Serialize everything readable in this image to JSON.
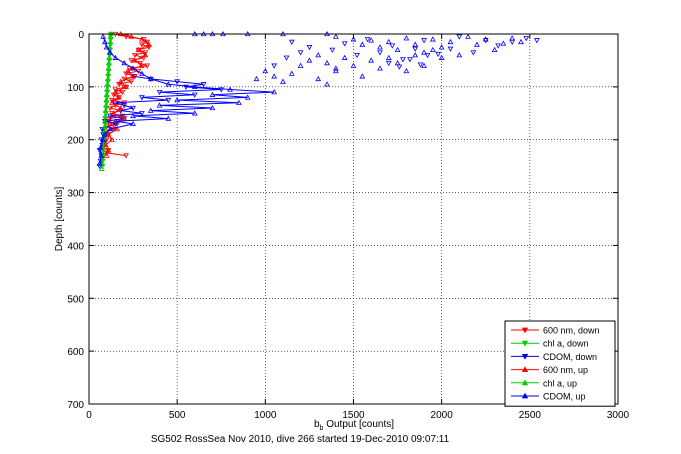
{
  "caption": "SG502 RossSea Nov 2010, dive 266 started 19-Dec-2010 09:07:11",
  "chart_data": {
    "type": "scatter",
    "title": "",
    "xlabel": "b_b Output [counts]",
    "xlabel_main": "b",
    "xlabel_sub": "b",
    "xlabel_rest": " Output [counts]",
    "ylabel": "Depth [counts]",
    "xlim": [
      0,
      3000
    ],
    "ylim": [
      0,
      700
    ],
    "y_reversed": true,
    "grid": true,
    "grid_style": "dotted",
    "legend_position": "bottom-right",
    "x_ticks": [
      0,
      500,
      1000,
      1500,
      2000,
      2500,
      3000
    ],
    "y_ticks": [
      0,
      100,
      200,
      300,
      400,
      500,
      600,
      700
    ],
    "series": [
      {
        "name": "600 nm, down",
        "color": "#ff0000",
        "marker": "triangle-down",
        "line": true,
        "points": [
          [
            150,
            0
          ],
          [
            210,
            5
          ],
          [
            310,
            10
          ],
          [
            330,
            15
          ],
          [
            300,
            20
          ],
          [
            340,
            25
          ],
          [
            280,
            30
          ],
          [
            320,
            35
          ],
          [
            260,
            40
          ],
          [
            310,
            45
          ],
          [
            240,
            50
          ],
          [
            290,
            55
          ],
          [
            330,
            60
          ],
          [
            230,
            65
          ],
          [
            280,
            70
          ],
          [
            210,
            75
          ],
          [
            260,
            80
          ],
          [
            200,
            85
          ],
          [
            240,
            90
          ],
          [
            170,
            95
          ],
          [
            210,
            100
          ],
          [
            150,
            105
          ],
          [
            190,
            110
          ],
          [
            140,
            115
          ],
          [
            170,
            120
          ],
          [
            130,
            125
          ],
          [
            200,
            130
          ],
          [
            150,
            135
          ],
          [
            120,
            140
          ],
          [
            180,
            145
          ],
          [
            130,
            150
          ],
          [
            190,
            155
          ],
          [
            120,
            160
          ],
          [
            110,
            165
          ],
          [
            160,
            170
          ],
          [
            100,
            175
          ],
          [
            140,
            180
          ],
          [
            95,
            185
          ],
          [
            110,
            190
          ],
          [
            90,
            195
          ],
          [
            100,
            200
          ],
          [
            90,
            205
          ],
          [
            85,
            210
          ],
          [
            80,
            215
          ],
          [
            110,
            220
          ],
          [
            100,
            225
          ],
          [
            210,
            230
          ]
        ]
      },
      {
        "name": "chl a, down",
        "color": "#00cc00",
        "marker": "triangle-down",
        "line": true,
        "points": [
          [
            125,
            0
          ],
          [
            124,
            10
          ],
          [
            122,
            20
          ],
          [
            120,
            30
          ],
          [
            118,
            40
          ],
          [
            116,
            50
          ],
          [
            114,
            60
          ],
          [
            112,
            70
          ],
          [
            110,
            80
          ],
          [
            108,
            90
          ],
          [
            106,
            100
          ],
          [
            104,
            110
          ],
          [
            102,
            120
          ],
          [
            100,
            130
          ],
          [
            98,
            140
          ],
          [
            96,
            150
          ],
          [
            94,
            160
          ],
          [
            92,
            170
          ],
          [
            90,
            180
          ],
          [
            88,
            190
          ],
          [
            86,
            200
          ],
          [
            84,
            210
          ],
          [
            82,
            220
          ],
          [
            80,
            230
          ],
          [
            78,
            240
          ],
          [
            76,
            250
          ]
        ]
      },
      {
        "name": "CDOM, down",
        "color": "#0000ff",
        "marker": "triangle-down",
        "line": true,
        "points": [
          [
            60,
            250
          ],
          [
            65,
            240
          ],
          [
            70,
            230
          ],
          [
            60,
            220
          ],
          [
            75,
            210
          ],
          [
            70,
            200
          ],
          [
            80,
            190
          ],
          [
            75,
            180
          ],
          [
            150,
            170
          ],
          [
            90,
            165
          ],
          [
            200,
            160
          ],
          [
            120,
            155
          ],
          [
            300,
            150
          ],
          [
            180,
            145
          ],
          [
            250,
            140
          ],
          [
            200,
            135
          ],
          [
            150,
            130
          ],
          [
            450,
            125
          ],
          [
            300,
            120
          ],
          [
            600,
            115
          ],
          [
            400,
            110
          ],
          [
            750,
            105
          ],
          [
            550,
            100
          ],
          [
            650,
            95
          ],
          [
            500,
            90
          ],
          [
            350,
            85
          ],
          [
            250,
            80
          ]
        ]
      },
      {
        "name": "600 nm, up",
        "color": "#ff0000",
        "marker": "triangle-up",
        "line": true,
        "points": [
          [
            100,
            230
          ],
          [
            110,
            220
          ],
          [
            95,
            210
          ],
          [
            130,
            200
          ],
          [
            110,
            190
          ],
          [
            160,
            180
          ],
          [
            120,
            170
          ],
          [
            200,
            160
          ],
          [
            140,
            150
          ],
          [
            180,
            140
          ],
          [
            130,
            130
          ],
          [
            170,
            120
          ],
          [
            150,
            110
          ],
          [
            210,
            100
          ],
          [
            180,
            90
          ],
          [
            250,
            80
          ],
          [
            220,
            70
          ],
          [
            300,
            60
          ],
          [
            260,
            50
          ],
          [
            320,
            40
          ],
          [
            280,
            30
          ],
          [
            340,
            20
          ],
          [
            300,
            10
          ],
          [
            240,
            5
          ],
          [
            180,
            0
          ]
        ]
      },
      {
        "name": "chl a, up",
        "color": "#00cc00",
        "marker": "triangle-up",
        "line": true,
        "points": [
          [
            72,
            255
          ],
          [
            74,
            245
          ],
          [
            76,
            235
          ],
          [
            78,
            225
          ],
          [
            80,
            215
          ],
          [
            82,
            205
          ],
          [
            84,
            195
          ],
          [
            86,
            185
          ],
          [
            88,
            175
          ],
          [
            90,
            165
          ],
          [
            92,
            155
          ],
          [
            94,
            145
          ],
          [
            96,
            135
          ],
          [
            98,
            125
          ],
          [
            100,
            115
          ],
          [
            102,
            105
          ],
          [
            104,
            95
          ],
          [
            106,
            85
          ],
          [
            108,
            75
          ],
          [
            110,
            65
          ],
          [
            112,
            55
          ],
          [
            114,
            45
          ],
          [
            116,
            35
          ],
          [
            118,
            25
          ],
          [
            120,
            15
          ],
          [
            122,
            5
          ],
          [
            124,
            0
          ]
        ]
      },
      {
        "name": "CDOM, up",
        "color": "#0000ff",
        "marker": "triangle-up",
        "line": true,
        "points": [
          [
            60,
            245
          ],
          [
            70,
            230
          ],
          [
            65,
            215
          ],
          [
            80,
            200
          ],
          [
            90,
            190
          ],
          [
            120,
            180
          ],
          [
            250,
            170
          ],
          [
            150,
            165
          ],
          [
            450,
            160
          ],
          [
            250,
            155
          ],
          [
            600,
            150
          ],
          [
            350,
            145
          ],
          [
            700,
            140
          ],
          [
            400,
            135
          ],
          [
            850,
            130
          ],
          [
            500,
            125
          ],
          [
            900,
            120
          ],
          [
            700,
            115
          ],
          [
            1050,
            110
          ],
          [
            800,
            105
          ],
          [
            600,
            100
          ],
          [
            450,
            95
          ],
          [
            350,
            85
          ],
          [
            300,
            75
          ],
          [
            250,
            65
          ],
          [
            200,
            55
          ],
          [
            150,
            45
          ],
          [
            120,
            35
          ],
          [
            100,
            25
          ],
          [
            90,
            15
          ],
          [
            80,
            5
          ]
        ]
      },
      {
        "name": "",
        "color": "#0000ff",
        "marker": "triangle-up",
        "line": false,
        "points": [
          [
            600,
            0
          ],
          [
            650,
            0
          ],
          [
            700,
            0
          ],
          [
            760,
            0
          ],
          [
            900,
            0
          ],
          [
            1100,
            0
          ],
          [
            1350,
            0
          ],
          [
            1400,
            5
          ],
          [
            1500,
            10
          ],
          [
            1550,
            20
          ],
          [
            1600,
            12
          ],
          [
            1650,
            25
          ],
          [
            1700,
            15
          ],
          [
            1750,
            30
          ],
          [
            1800,
            8
          ],
          [
            1850,
            20
          ],
          [
            1900,
            35
          ],
          [
            1950,
            10
          ],
          [
            2000,
            25
          ],
          [
            2050,
            15
          ],
          [
            2100,
            40
          ],
          [
            2150,
            5
          ],
          [
            2200,
            20
          ],
          [
            2250,
            10
          ],
          [
            2300,
            30
          ],
          [
            2350,
            18
          ],
          [
            2400,
            8
          ],
          [
            2450,
            15
          ],
          [
            1300,
            40
          ],
          [
            1350,
            55
          ],
          [
            1400,
            70
          ],
          [
            1450,
            45
          ],
          [
            1500,
            60
          ],
          [
            1550,
            80
          ],
          [
            1600,
            50
          ],
          [
            1650,
            65
          ],
          [
            1700,
            45
          ],
          [
            1750,
            55
          ],
          [
            1800,
            70
          ],
          [
            1850,
            40
          ],
          [
            1900,
            60
          ],
          [
            1950,
            30
          ],
          [
            2000,
            45
          ],
          [
            1200,
            60
          ],
          [
            1150,
            75
          ],
          [
            1250,
            50
          ],
          [
            1100,
            90
          ],
          [
            1050,
            80
          ],
          [
            1000,
            70
          ],
          [
            950,
            85
          ],
          [
            1300,
            85
          ],
          [
            1350,
            95
          ],
          [
            1400,
            65
          ]
        ]
      },
      {
        "name": "",
        "color": "#0000ff",
        "marker": "triangle-down",
        "line": false,
        "points": [
          [
            1150,
            15
          ],
          [
            1250,
            25
          ],
          [
            1380,
            30
          ],
          [
            1450,
            18
          ],
          [
            1520,
            40
          ],
          [
            1580,
            10
          ],
          [
            1650,
            35
          ],
          [
            1720,
            22
          ],
          [
            1780,
            48
          ],
          [
            1850,
            28
          ],
          [
            1900,
            12
          ],
          [
            1980,
            38
          ],
          [
            2050,
            28
          ],
          [
            2100,
            5
          ],
          [
            2180,
            35
          ],
          [
            2250,
            12
          ],
          [
            2320,
            22
          ],
          [
            2400,
            15
          ],
          [
            2480,
            8
          ],
          [
            2540,
            12
          ],
          [
            1700,
            55
          ],
          [
            1760,
            62
          ],
          [
            1820,
            48
          ],
          [
            1880,
            58
          ],
          [
            1920,
            40
          ],
          [
            1050,
            60
          ],
          [
            1120,
            45
          ],
          [
            1200,
            35
          ]
        ]
      }
    ]
  }
}
